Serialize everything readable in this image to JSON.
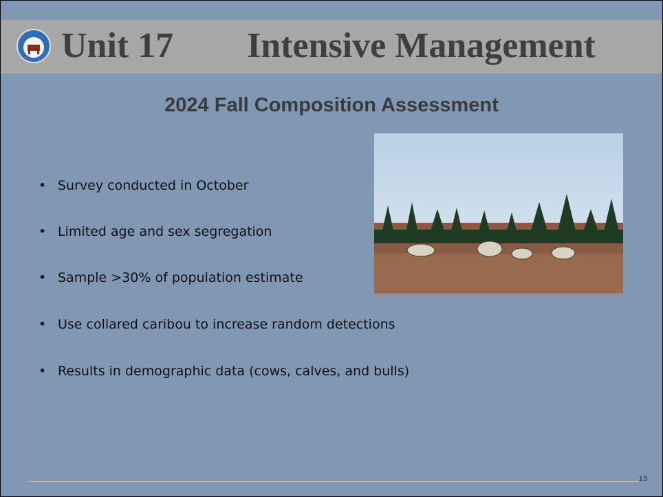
{
  "header": {
    "title_unit": "Unit 17",
    "title_topic": "Intensive Management"
  },
  "subtitle": "2024 Fall Composition Assessment",
  "bullets": [
    "Survey conducted in October",
    "Limited age and sex segregation",
    "Sample >30% of population estimate",
    "Use collared caribou to increase random detections",
    "Results in demographic data (cows, calves, and bulls)"
  ],
  "slide_number": "13"
}
